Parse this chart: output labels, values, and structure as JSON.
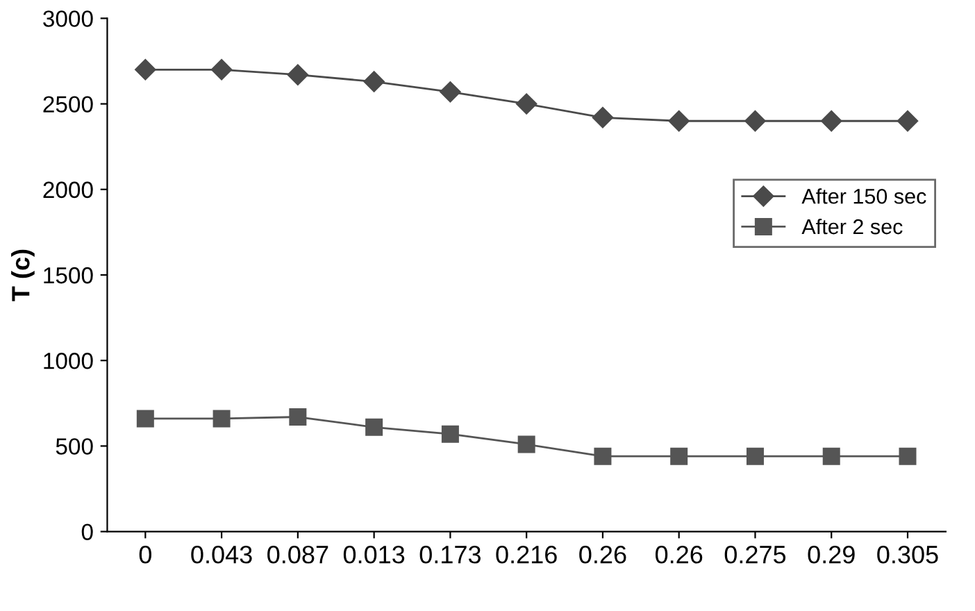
{
  "chart_data": {
    "type": "line",
    "ylabel": "T (c)",
    "categories": [
      "0",
      "0.043",
      "0.087",
      "0.013",
      "0.173",
      "0.216",
      "0.26",
      "0.26",
      "0.275",
      "0.29",
      "0.305"
    ],
    "series": [
      {
        "name": "After 150 sec",
        "color": "#4a4a4a",
        "marker": "diamond",
        "values": [
          2700,
          2700,
          2670,
          2630,
          2570,
          2500,
          2420,
          2400,
          2400,
          2400,
          2400
        ]
      },
      {
        "name": "After 2 sec",
        "color": "#555555",
        "marker": "square",
        "values": [
          660,
          660,
          670,
          610,
          570,
          510,
          440,
          440,
          440,
          440,
          440
        ]
      }
    ],
    "ylim": [
      0,
      3000
    ],
    "yticks": [
      0,
      500,
      1000,
      1500,
      2000,
      2500,
      3000
    ],
    "grid": false,
    "legend": "right",
    "line_style": "solid"
  }
}
